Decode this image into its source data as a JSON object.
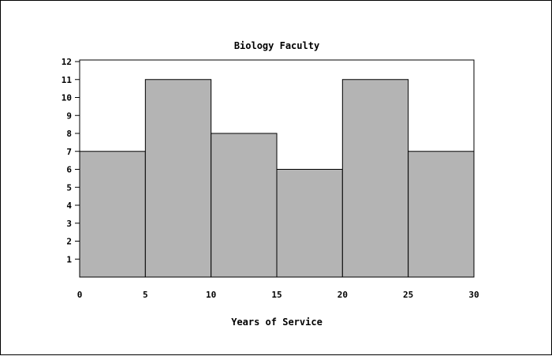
{
  "chart_data": {
    "type": "bar",
    "title": "Biology Faculty",
    "xlabel": "Years of Service",
    "ylabel": "",
    "bin_edges": [
      0,
      5,
      10,
      15,
      20,
      25,
      30
    ],
    "values": [
      7,
      11,
      8,
      6,
      11,
      7
    ],
    "xlim": [
      0,
      30
    ],
    "ylim": [
      0,
      12
    ],
    "x_ticks": [
      0,
      5,
      10,
      15,
      20,
      25,
      30
    ],
    "y_ticks": [
      1,
      2,
      3,
      4,
      5,
      6,
      7,
      8,
      9,
      10,
      11,
      12
    ],
    "bar_color": "#b4b4b4",
    "grid": false,
    "legend": "none"
  }
}
